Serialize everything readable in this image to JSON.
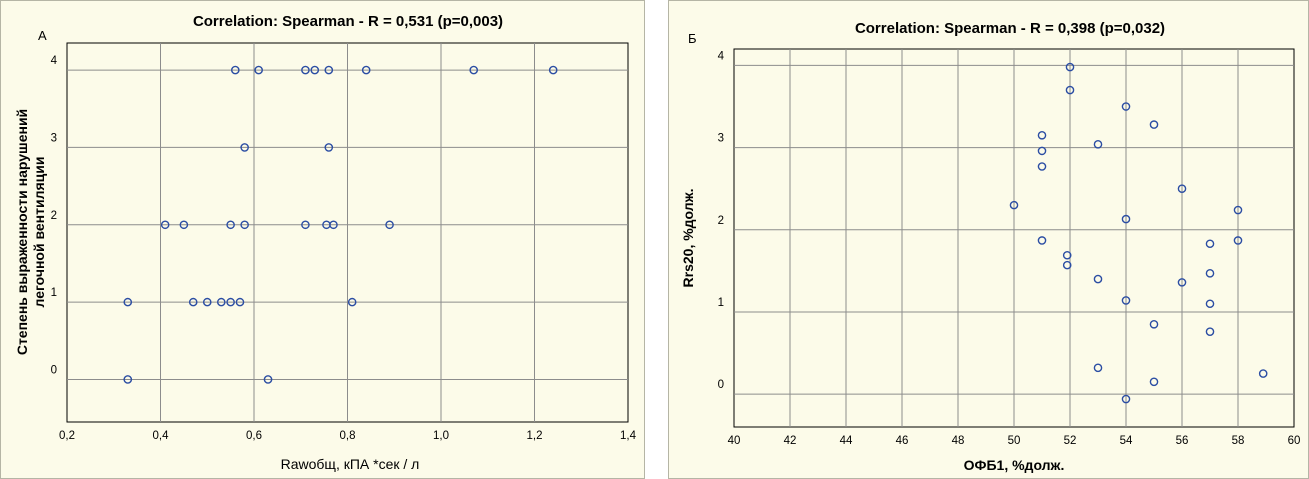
{
  "chart_data": [
    {
      "type": "scatter",
      "panel_label": "А",
      "title": "Correlation: Spearman - R = 0,531 (p=0,003)",
      "xlabel": "Rawобщ, кПА *сек / л",
      "ylabel_lines": [
        "Степень выраженности нарушений",
        "легочной вентиляции"
      ],
      "xlim": [
        0.2,
        1.4
      ],
      "ylim": [
        -0.55,
        4.35
      ],
      "xticks": [
        "0,2",
        "0,4",
        "0,6",
        "0,8",
        "1,0",
        "1,2",
        "1,4"
      ],
      "yticks": [
        "0",
        "1",
        "2",
        "3",
        "4"
      ],
      "grid": true,
      "point_color": "#2b4da3",
      "background": "#fcfbe9",
      "points": [
        {
          "x": 0.33,
          "y": 1
        },
        {
          "x": 0.33,
          "y": 0
        },
        {
          "x": 0.41,
          "y": 2
        },
        {
          "x": 0.45,
          "y": 2
        },
        {
          "x": 0.47,
          "y": 1
        },
        {
          "x": 0.5,
          "y": 1
        },
        {
          "x": 0.53,
          "y": 1
        },
        {
          "x": 0.55,
          "y": 1
        },
        {
          "x": 0.55,
          "y": 2
        },
        {
          "x": 0.56,
          "y": 4
        },
        {
          "x": 0.57,
          "y": 1
        },
        {
          "x": 0.58,
          "y": 3
        },
        {
          "x": 0.58,
          "y": 2
        },
        {
          "x": 0.61,
          "y": 4
        },
        {
          "x": 0.63,
          "y": 0
        },
        {
          "x": 0.71,
          "y": 4
        },
        {
          "x": 0.71,
          "y": 2
        },
        {
          "x": 0.73,
          "y": 4
        },
        {
          "x": 0.76,
          "y": 4
        },
        {
          "x": 0.76,
          "y": 3
        },
        {
          "x": 0.755,
          "y": 2
        },
        {
          "x": 0.77,
          "y": 2
        },
        {
          "x": 0.81,
          "y": 1
        },
        {
          "x": 0.84,
          "y": 4
        },
        {
          "x": 0.89,
          "y": 2
        },
        {
          "x": 1.07,
          "y": 4
        },
        {
          "x": 1.24,
          "y": 4
        }
      ]
    },
    {
      "type": "scatter",
      "panel_label": "Б",
      "title": "Correlation: Spearman - R = 0,398 (p=0,032)",
      "xlabel": "ОФБ1, %долж.",
      "ylabel": "Rrs20, %долж.",
      "xlim": [
        40,
        60
      ],
      "ylim": [
        -0.4,
        4.2
      ],
      "xticks": [
        "40",
        "42",
        "44",
        "46",
        "48",
        "50",
        "52",
        "54",
        "56",
        "58",
        "60"
      ],
      "yticks": [
        "0",
        "1",
        "2",
        "3",
        "4"
      ],
      "grid": true,
      "point_color": "#2b4da3",
      "background": "#fcfbe9",
      "points": [
        {
          "x": 50,
          "y": 2.3
        },
        {
          "x": 51,
          "y": 3.15
        },
        {
          "x": 51,
          "y": 2.96
        },
        {
          "x": 51,
          "y": 2.77
        },
        {
          "x": 51,
          "y": 1.87
        },
        {
          "x": 51.9,
          "y": 1.69
        },
        {
          "x": 51.9,
          "y": 1.57
        },
        {
          "x": 52,
          "y": 3.98
        },
        {
          "x": 52,
          "y": 3.7
        },
        {
          "x": 53,
          "y": 3.04
        },
        {
          "x": 53,
          "y": 1.4
        },
        {
          "x": 53,
          "y": 0.32
        },
        {
          "x": 54,
          "y": 3.5
        },
        {
          "x": 54,
          "y": 2.13
        },
        {
          "x": 54,
          "y": 1.14
        },
        {
          "x": 54,
          "y": -0.06
        },
        {
          "x": 55,
          "y": 3.28
        },
        {
          "x": 55,
          "y": 0.85
        },
        {
          "x": 55,
          "y": 0.15
        },
        {
          "x": 56,
          "y": 2.5
        },
        {
          "x": 56,
          "y": 1.36
        },
        {
          "x": 57,
          "y": 1.83
        },
        {
          "x": 57,
          "y": 1.47
        },
        {
          "x": 57,
          "y": 1.1
        },
        {
          "x": 57,
          "y": 0.76
        },
        {
          "x": 58,
          "y": 2.24
        },
        {
          "x": 58,
          "y": 1.87
        },
        {
          "x": 58.9,
          "y": 0.25
        }
      ]
    }
  ]
}
